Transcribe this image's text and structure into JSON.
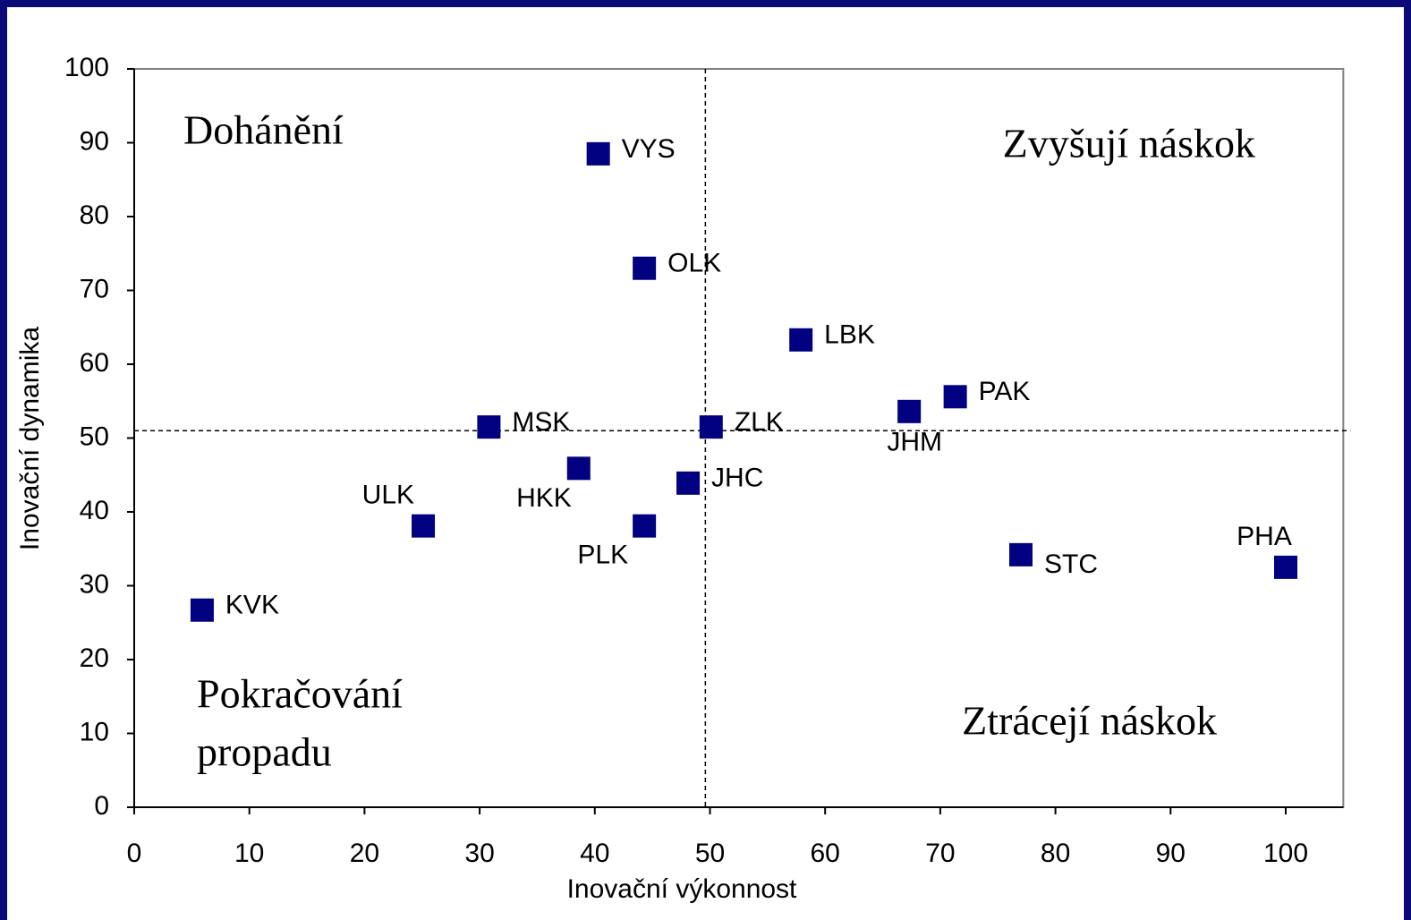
{
  "chart_data": {
    "type": "scatter",
    "x_label": "Inovační výkonnost",
    "y_label": "Inovační dynamika",
    "xlim": [
      0,
      105
    ],
    "ylim": [
      0,
      100
    ],
    "xticks": [
      0,
      10,
      20,
      30,
      40,
      50,
      60,
      70,
      80,
      90,
      100
    ],
    "yticks": [
      0,
      10,
      20,
      30,
      40,
      50,
      60,
      70,
      80,
      90,
      100
    ],
    "grid": false,
    "color": "#000080",
    "labels": [
      "VYS",
      "OLK",
      "LBK",
      "PAK",
      "JHM",
      "MSK",
      "ZLK",
      "HKK",
      "JHC",
      "ULK",
      "PLK",
      "STC",
      "PHA",
      "KVK"
    ],
    "x": [
      40.3,
      44.3,
      57.9,
      71.3,
      67.3,
      30.8,
      50.1,
      38.6,
      48.1,
      25.1,
      44.3,
      77.0,
      100,
      5.9
    ],
    "values": [
      88.5,
      73.0,
      63.3,
      55.6,
      53.6,
      51.5,
      51.5,
      45.9,
      43.9,
      38.1,
      38.1,
      34.2,
      32.5,
      26.7
    ],
    "threshold_x": 49.6,
    "threshold_y": 51,
    "annotations": [
      {
        "lines": [
          "Dohánění"
        ]
      },
      {
        "lines": [
          "Zvyšují náskok"
        ]
      },
      {
        "lines": [
          "Pokračování",
          "propadu"
        ]
      },
      {
        "lines": [
          "Ztrácejí náskok"
        ]
      }
    ]
  }
}
